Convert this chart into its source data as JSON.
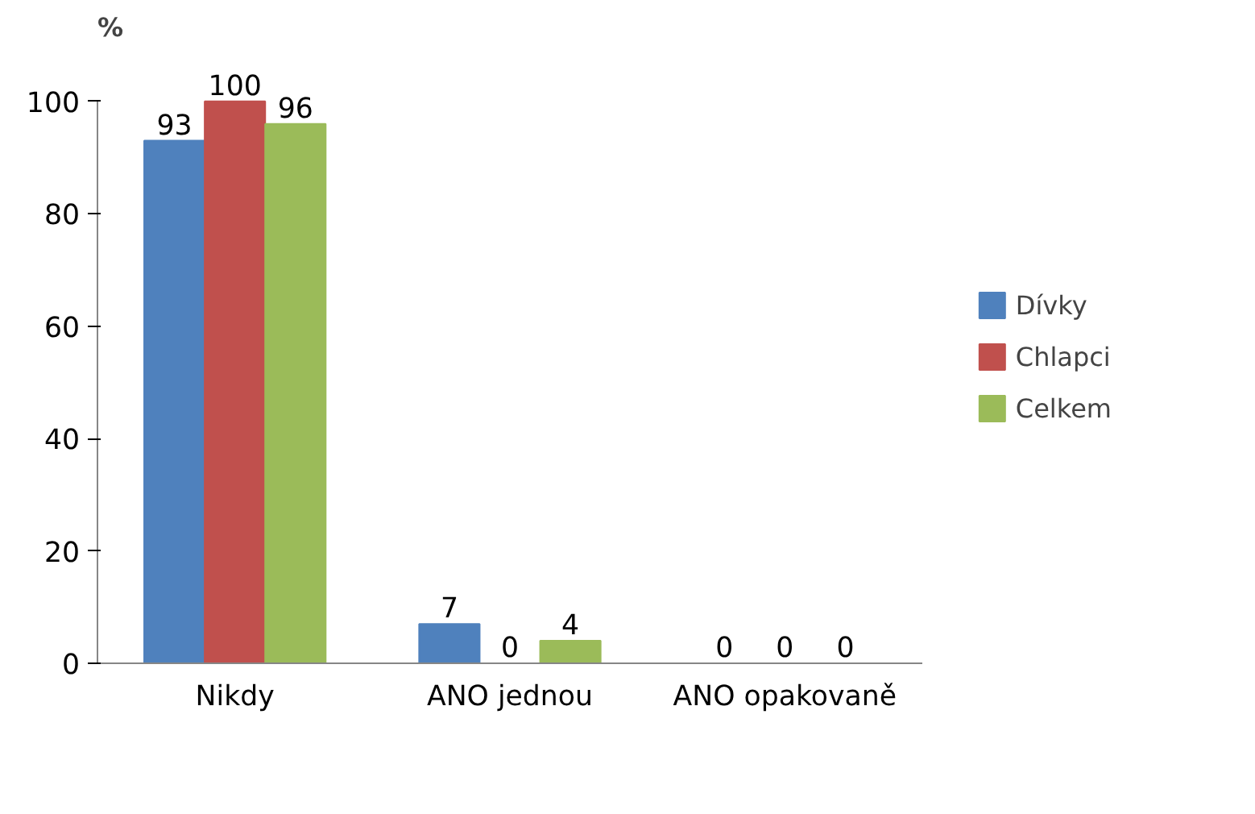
{
  "chart_data": {
    "type": "bar",
    "ylabel": "%",
    "categories": [
      "Nikdy",
      "ANO jednou",
      "ANO opakovaně"
    ],
    "series": [
      {
        "name": "Dívky",
        "color": "#4f81bd",
        "values": [
          93,
          7,
          0
        ]
      },
      {
        "name": "Chlapci",
        "color": "#c0504d",
        "values": [
          100,
          0,
          0
        ]
      },
      {
        "name": "Celkem",
        "color": "#9bbb59",
        "values": [
          96,
          4,
          0
        ]
      }
    ],
    "ylim": [
      0,
      100
    ],
    "yticks": [
      0,
      20,
      40,
      60,
      80,
      100
    ],
    "grid": false,
    "legend": "right",
    "data_labels": true
  }
}
